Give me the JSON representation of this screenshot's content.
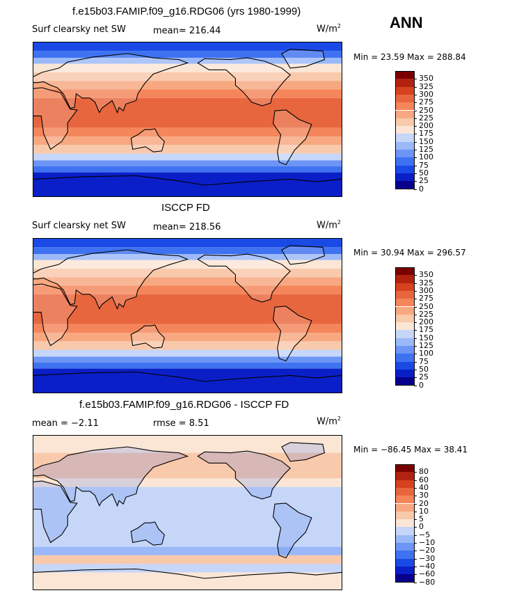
{
  "season": "ANN",
  "colors": {
    "pos_scale": [
      "#08008c",
      "#0a1fc8",
      "#1a4ae6",
      "#3f72f0",
      "#6c95f5",
      "#9bb9f8",
      "#c5d6f8",
      "#fbe6d6",
      "#f9c9ab",
      "#f7a880",
      "#f5855a",
      "#e8663e",
      "#d6421e",
      "#b22210",
      "#7a0000"
    ],
    "diff_scale": [
      "#08008c",
      "#0a1fc8",
      "#1a4ae6",
      "#3f72f0",
      "#6c95f5",
      "#9bb9f8",
      "#c5d6f8",
      "#fbe6d6",
      "#f9c9ab",
      "#f7a880",
      "#f5855a",
      "#e8663e",
      "#d6421e",
      "#b22210",
      "#7a0000"
    ]
  },
  "panels": [
    {
      "title": "f.e15b03.FAMIP.f09_g16.RDG06 (yrs 1980-1999)",
      "variable": "Surf clearsky net SW",
      "stat_text": "mean= 216.44",
      "units": "W/m",
      "units_sup": "2",
      "minmax": "Min =  23.59 Max = 288.84",
      "kind": "abs"
    },
    {
      "title": "ISCCP FD",
      "variable": "Surf clearsky net SW",
      "stat_text": "mean= 218.56",
      "units": "W/m",
      "units_sup": "2",
      "minmax": "Min =  30.94 Max = 296.57",
      "kind": "abs"
    },
    {
      "title": "f.e15b03.FAMIP.f09_g16.RDG06 - ISCCP FD",
      "variable": "",
      "stat_text": "mean =  −2.11",
      "rmse_text": "rmse =   8.51",
      "units": "W/m",
      "units_sup": "2",
      "minmax": "Min = −86.45 Max =  38.41",
      "kind": "diff"
    }
  ],
  "chart_data": [
    {
      "type": "heatmap",
      "title": "f.e15b03.FAMIP.f09_g16.RDG06 (yrs 1980-1999)",
      "variable": "Surf clearsky net SW",
      "units": "W/m2",
      "mean": 216.44,
      "min": 23.59,
      "max": 288.84,
      "colorbar_levels": [
        0,
        25,
        50,
        75,
        100,
        125,
        150,
        175,
        200,
        225,
        250,
        275,
        300,
        325,
        350
      ],
      "colorbar_labels": [
        "350",
        "325",
        "300",
        "275",
        "250",
        "225",
        "200",
        "175",
        "150",
        "125",
        "100",
        "75",
        "50",
        "25",
        "0"
      ]
    },
    {
      "type": "heatmap",
      "title": "ISCCP FD",
      "variable": "Surf clearsky net SW",
      "units": "W/m2",
      "mean": 218.56,
      "min": 30.94,
      "max": 296.57,
      "colorbar_levels": [
        0,
        25,
        50,
        75,
        100,
        125,
        150,
        175,
        200,
        225,
        250,
        275,
        300,
        325,
        350
      ],
      "colorbar_labels": [
        "350",
        "325",
        "300",
        "275",
        "250",
        "225",
        "200",
        "175",
        "150",
        "125",
        "100",
        "75",
        "50",
        "25",
        "0"
      ]
    },
    {
      "type": "heatmap",
      "title": "f.e15b03.FAMIP.f09_g16.RDG06 - ISCCP FD",
      "units": "W/m2",
      "mean": -2.11,
      "rmse": 8.51,
      "min": -86.45,
      "max": 38.41,
      "colorbar_levels": [
        -80,
        -60,
        -40,
        -30,
        -20,
        -10,
        -5,
        0,
        5,
        10,
        20,
        30,
        40,
        60,
        80
      ],
      "colorbar_labels": [
        "80",
        "60",
        "40",
        "30",
        "20",
        "10",
        "5",
        "0",
        "−5",
        "−10",
        "−20",
        "−30",
        "−40",
        "−60",
        "−80"
      ]
    }
  ]
}
